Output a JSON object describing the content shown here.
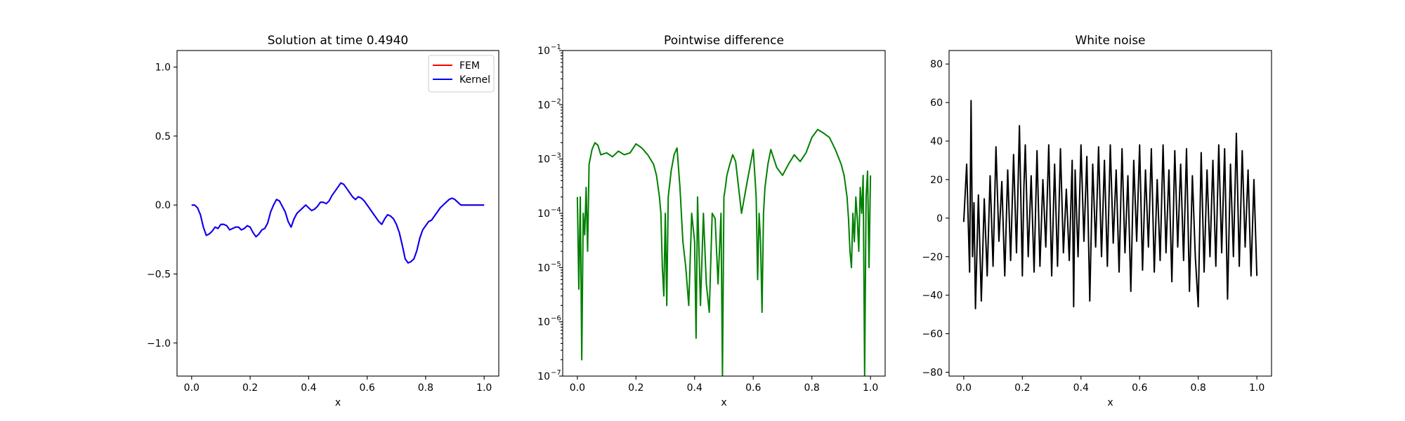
{
  "chart_data": [
    {
      "type": "line",
      "title": "Solution at time 0.4940",
      "xlabel": "x",
      "ylabel": "",
      "xlim": [
        -0.05,
        1.05
      ],
      "ylim": [
        -1.24,
        1.12
      ],
      "xticks": [
        0.0,
        0.2,
        0.4,
        0.6,
        0.8,
        1.0
      ],
      "xtick_labels": [
        "0.0",
        "0.2",
        "0.4",
        "0.6",
        "0.8",
        "1.0"
      ],
      "yticks": [
        -1.0,
        -0.5,
        0.0,
        0.5,
        1.0
      ],
      "ytick_labels": [
        "−1.0",
        "−0.5",
        "0.0",
        "0.5",
        "1.0"
      ],
      "legend_position": "upper right",
      "series": [
        {
          "name": "FEM",
          "color": "#ff0000",
          "x": [
            0.0,
            0.01,
            0.02,
            0.03,
            0.04,
            0.05,
            0.06,
            0.07,
            0.08,
            0.09,
            0.1,
            0.11,
            0.12,
            0.13,
            0.14,
            0.15,
            0.16,
            0.17,
            0.18,
            0.19,
            0.2,
            0.21,
            0.22,
            0.23,
            0.24,
            0.25,
            0.26,
            0.27,
            0.28,
            0.29,
            0.3,
            0.31,
            0.32,
            0.33,
            0.34,
            0.35,
            0.36,
            0.37,
            0.38,
            0.39,
            0.4,
            0.41,
            0.42,
            0.43,
            0.44,
            0.45,
            0.46,
            0.47,
            0.48,
            0.49,
            0.5,
            0.51,
            0.52,
            0.53,
            0.54,
            0.55,
            0.56,
            0.57,
            0.58,
            0.59,
            0.6,
            0.61,
            0.62,
            0.63,
            0.64,
            0.65,
            0.66,
            0.67,
            0.68,
            0.69,
            0.7,
            0.71,
            0.72,
            0.73,
            0.74,
            0.75,
            0.76,
            0.77,
            0.78,
            0.79,
            0.8,
            0.81,
            0.82,
            0.83,
            0.84,
            0.85,
            0.86,
            0.87,
            0.88,
            0.89,
            0.9,
            0.91,
            0.92,
            0.93,
            0.94,
            0.95,
            0.96,
            0.97,
            0.98,
            0.99,
            1.0
          ],
          "y": [
            0.0,
            0.0,
            -0.02,
            -0.07,
            -0.16,
            -0.22,
            -0.21,
            -0.19,
            -0.16,
            -0.17,
            -0.14,
            -0.14,
            -0.15,
            -0.18,
            -0.17,
            -0.16,
            -0.16,
            -0.18,
            -0.17,
            -0.15,
            -0.16,
            -0.2,
            -0.23,
            -0.21,
            -0.18,
            -0.17,
            -0.13,
            -0.05,
            0.0,
            0.04,
            0.03,
            -0.01,
            -0.05,
            -0.12,
            -0.16,
            -0.1,
            -0.06,
            -0.04,
            -0.02,
            0.0,
            -0.02,
            -0.04,
            -0.03,
            -0.01,
            0.02,
            0.02,
            0.01,
            0.03,
            0.07,
            0.1,
            0.13,
            0.16,
            0.15,
            0.12,
            0.09,
            0.06,
            0.04,
            0.06,
            0.05,
            0.03,
            0.0,
            -0.03,
            -0.06,
            -0.09,
            -0.12,
            -0.14,
            -0.1,
            -0.07,
            -0.08,
            -0.1,
            -0.14,
            -0.2,
            -0.29,
            -0.39,
            -0.42,
            -0.41,
            -0.39,
            -0.33,
            -0.24,
            -0.18,
            -0.15,
            -0.12,
            -0.11,
            -0.08,
            -0.05,
            -0.02,
            0.0,
            0.02,
            0.04,
            0.05,
            0.04,
            0.02,
            0.0,
            0.0,
            0.0,
            0.0,
            0.0,
            0.0,
            0.0,
            0.0,
            0.0
          ]
        },
        {
          "name": "Kernel",
          "color": "#0000ff",
          "x": [
            0.0,
            0.01,
            0.02,
            0.03,
            0.04,
            0.05,
            0.06,
            0.07,
            0.08,
            0.09,
            0.1,
            0.11,
            0.12,
            0.13,
            0.14,
            0.15,
            0.16,
            0.17,
            0.18,
            0.19,
            0.2,
            0.21,
            0.22,
            0.23,
            0.24,
            0.25,
            0.26,
            0.27,
            0.28,
            0.29,
            0.3,
            0.31,
            0.32,
            0.33,
            0.34,
            0.35,
            0.36,
            0.37,
            0.38,
            0.39,
            0.4,
            0.41,
            0.42,
            0.43,
            0.44,
            0.45,
            0.46,
            0.47,
            0.48,
            0.49,
            0.5,
            0.51,
            0.52,
            0.53,
            0.54,
            0.55,
            0.56,
            0.57,
            0.58,
            0.59,
            0.6,
            0.61,
            0.62,
            0.63,
            0.64,
            0.65,
            0.66,
            0.67,
            0.68,
            0.69,
            0.7,
            0.71,
            0.72,
            0.73,
            0.74,
            0.75,
            0.76,
            0.77,
            0.78,
            0.79,
            0.8,
            0.81,
            0.82,
            0.83,
            0.84,
            0.85,
            0.86,
            0.87,
            0.88,
            0.89,
            0.9,
            0.91,
            0.92,
            0.93,
            0.94,
            0.95,
            0.96,
            0.97,
            0.98,
            0.99,
            1.0
          ],
          "y": [
            0.0,
            0.0,
            -0.02,
            -0.07,
            -0.16,
            -0.22,
            -0.21,
            -0.19,
            -0.16,
            -0.17,
            -0.14,
            -0.14,
            -0.15,
            -0.18,
            -0.17,
            -0.16,
            -0.16,
            -0.18,
            -0.17,
            -0.15,
            -0.16,
            -0.2,
            -0.23,
            -0.21,
            -0.18,
            -0.17,
            -0.13,
            -0.05,
            0.0,
            0.04,
            0.03,
            -0.01,
            -0.05,
            -0.12,
            -0.16,
            -0.1,
            -0.06,
            -0.04,
            -0.02,
            0.0,
            -0.02,
            -0.04,
            -0.03,
            -0.01,
            0.02,
            0.02,
            0.01,
            0.03,
            0.07,
            0.1,
            0.13,
            0.16,
            0.15,
            0.12,
            0.09,
            0.06,
            0.04,
            0.06,
            0.05,
            0.03,
            0.0,
            -0.03,
            -0.06,
            -0.09,
            -0.12,
            -0.14,
            -0.1,
            -0.07,
            -0.08,
            -0.1,
            -0.14,
            -0.2,
            -0.29,
            -0.39,
            -0.42,
            -0.41,
            -0.39,
            -0.33,
            -0.24,
            -0.18,
            -0.15,
            -0.12,
            -0.11,
            -0.08,
            -0.05,
            -0.02,
            0.0,
            0.02,
            0.04,
            0.05,
            0.04,
            0.02,
            0.0,
            0.0,
            0.0,
            0.0,
            0.0,
            0.0,
            0.0,
            0.0,
            0.0
          ]
        }
      ]
    },
    {
      "type": "line",
      "title": "Pointwise difference",
      "xlabel": "x",
      "ylabel": "",
      "xlim": [
        -0.05,
        1.05
      ],
      "ylim": [
        1e-07,
        0.1
      ],
      "yscale": "log",
      "xticks": [
        0.0,
        0.2,
        0.4,
        0.6,
        0.8,
        1.0
      ],
      "xtick_labels": [
        "0.0",
        "0.2",
        "0.4",
        "0.6",
        "0.8",
        "1.0"
      ],
      "yticks": [
        -7,
        -6,
        -5,
        -4,
        -3,
        -2,
        -1
      ],
      "ytick_labels": [
        "10",
        "10",
        "10",
        "10",
        "10",
        "10",
        "10"
      ],
      "ytick_exponents": [
        "−7",
        "−6",
        "−5",
        "−4",
        "−3",
        "−2",
        "−1"
      ],
      "series": [
        {
          "name": "",
          "color": "#008000",
          "x": [
            0.0,
            0.005,
            0.01,
            0.015,
            0.02,
            0.025,
            0.03,
            0.035,
            0.04,
            0.05,
            0.06,
            0.07,
            0.08,
            0.1,
            0.12,
            0.14,
            0.16,
            0.18,
            0.2,
            0.22,
            0.24,
            0.26,
            0.27,
            0.28,
            0.285,
            0.29,
            0.295,
            0.3,
            0.305,
            0.31,
            0.32,
            0.33,
            0.34,
            0.35,
            0.36,
            0.37,
            0.38,
            0.39,
            0.4,
            0.405,
            0.41,
            0.42,
            0.43,
            0.44,
            0.45,
            0.46,
            0.47,
            0.48,
            0.49,
            0.495,
            0.5,
            0.505,
            0.51,
            0.52,
            0.53,
            0.54,
            0.55,
            0.56,
            0.58,
            0.6,
            0.61,
            0.615,
            0.62,
            0.625,
            0.63,
            0.635,
            0.64,
            0.65,
            0.66,
            0.68,
            0.7,
            0.72,
            0.74,
            0.76,
            0.78,
            0.8,
            0.82,
            0.84,
            0.86,
            0.88,
            0.9,
            0.91,
            0.92,
            0.925,
            0.93,
            0.935,
            0.94,
            0.945,
            0.95,
            0.955,
            0.96,
            0.965,
            0.97,
            0.975,
            0.98,
            0.985,
            0.99,
            0.995,
            1.0
          ],
          "y": [
            0.0002,
            4e-06,
            0.0002,
            2e-07,
            0.0001,
            4e-05,
            0.0003,
            2e-05,
            0.0008,
            0.0015,
            0.002,
            0.0018,
            0.0012,
            0.0013,
            0.0011,
            0.0014,
            0.0012,
            0.0013,
            0.0019,
            0.0016,
            0.0012,
            0.0008,
            0.0005,
            0.0002,
            0.0001,
            1e-05,
            3e-06,
            0.0001,
            2e-06,
            0.0002,
            0.0006,
            0.0012,
            0.0016,
            0.0003,
            3e-05,
            1e-05,
            2e-06,
            0.0001,
            3e-05,
            5e-07,
            0.0002,
            2e-06,
            0.0001,
            5e-06,
            1.5e-06,
            0.0001,
            8e-05,
            5e-06,
            0.0001,
            1e-07,
            0.0002,
            0.0003,
            0.0005,
            0.0008,
            0.0012,
            0.0009,
            0.0003,
            0.0001,
            0.0004,
            0.0015,
            0.0002,
            6e-06,
            0.0001,
            3e-05,
            1.5e-06,
            0.0001,
            0.0003,
            0.0008,
            0.0015,
            0.0007,
            0.0005,
            0.0008,
            0.0012,
            0.0009,
            0.0013,
            0.0025,
            0.0035,
            0.003,
            0.0025,
            0.0015,
            0.0008,
            0.0005,
            0.0002,
            8e-05,
            2e-05,
            1e-05,
            0.0001,
            3e-05,
            0.0002,
            8e-05,
            2e-05,
            0.0003,
            0.0001,
            0.0005,
            1e-07,
            0.0002,
            0.0006,
            1e-05,
            0.0005
          ]
        }
      ]
    },
    {
      "type": "line",
      "title": "White noise",
      "xlabel": "x",
      "ylabel": "",
      "xlim": [
        -0.05,
        1.05
      ],
      "ylim": [
        -82,
        87
      ],
      "xticks": [
        0.0,
        0.2,
        0.4,
        0.6,
        0.8,
        1.0
      ],
      "xtick_labels": [
        "0.0",
        "0.2",
        "0.4",
        "0.6",
        "0.8",
        "1.0"
      ],
      "yticks": [
        -80,
        -60,
        -40,
        -20,
        0,
        20,
        40,
        60,
        80
      ],
      "ytick_labels": [
        "−80",
        "−60",
        "−40",
        "−20",
        "0",
        "20",
        "40",
        "60",
        "80"
      ],
      "series": [
        {
          "name": "",
          "color": "#000000",
          "x": [
            0.0,
            0.01,
            0.02,
            0.025,
            0.03,
            0.035,
            0.04,
            0.05,
            0.06,
            0.07,
            0.08,
            0.09,
            0.1,
            0.11,
            0.12,
            0.13,
            0.14,
            0.15,
            0.16,
            0.17,
            0.18,
            0.19,
            0.2,
            0.205,
            0.21,
            0.22,
            0.23,
            0.24,
            0.25,
            0.26,
            0.27,
            0.28,
            0.29,
            0.3,
            0.31,
            0.32,
            0.33,
            0.34,
            0.35,
            0.36,
            0.37,
            0.375,
            0.38,
            0.39,
            0.4,
            0.41,
            0.42,
            0.43,
            0.44,
            0.45,
            0.46,
            0.47,
            0.48,
            0.49,
            0.5,
            0.51,
            0.52,
            0.53,
            0.54,
            0.55,
            0.56,
            0.57,
            0.58,
            0.59,
            0.6,
            0.61,
            0.62,
            0.63,
            0.64,
            0.65,
            0.66,
            0.67,
            0.68,
            0.69,
            0.7,
            0.71,
            0.72,
            0.73,
            0.74,
            0.75,
            0.76,
            0.77,
            0.78,
            0.79,
            0.8,
            0.81,
            0.82,
            0.83,
            0.84,
            0.85,
            0.86,
            0.87,
            0.88,
            0.89,
            0.9,
            0.91,
            0.92,
            0.93,
            0.94,
            0.95,
            0.96,
            0.97,
            0.98,
            0.99,
            1.0
          ],
          "y": [
            -2,
            28,
            -28,
            61,
            -20,
            8,
            -47,
            12,
            -43,
            10,
            -30,
            22,
            -25,
            37,
            -12,
            19,
            -30,
            25,
            -22,
            33,
            -18,
            48,
            -30,
            15,
            38,
            -20,
            22,
            -28,
            35,
            -25,
            20,
            -15,
            38,
            -30,
            28,
            -25,
            36,
            -18,
            15,
            -22,
            30,
            -46,
            25,
            -20,
            38,
            -12,
            32,
            -43,
            28,
            -15,
            37,
            -20,
            30,
            -25,
            38,
            -13,
            25,
            -28,
            36,
            -18,
            22,
            -38,
            30,
            -12,
            38,
            -27,
            25,
            -15,
            36,
            -28,
            20,
            -22,
            38,
            -18,
            25,
            -33,
            35,
            -15,
            28,
            -22,
            36,
            -38,
            22,
            -20,
            -46,
            34,
            -28,
            25,
            -20,
            30,
            -25,
            38,
            -18,
            36,
            -42,
            28,
            -20,
            44,
            -25,
            35,
            -15,
            25,
            -30,
            20,
            -30
          ]
        }
      ]
    }
  ]
}
